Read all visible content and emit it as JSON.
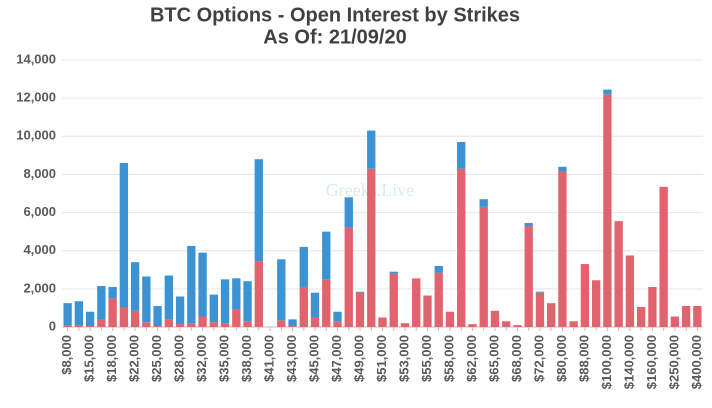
{
  "chart_data": {
    "type": "stacked_bar",
    "title": "BTC Options - Open Interest by Strikes",
    "subtitle": "As Of: 21/09/20",
    "watermark": "Greeks.Live",
    "categories": [
      "$8,000",
      null,
      "$15,000",
      null,
      "$18,000",
      null,
      "$22,000",
      null,
      "$25,000",
      null,
      "$28,000",
      null,
      "$32,000",
      null,
      "$35,000",
      null,
      "$38,000",
      null,
      "$41,000",
      null,
      "$43,000",
      null,
      "$45,000",
      null,
      "$47,000",
      null,
      "$49,000",
      null,
      "$51,000",
      null,
      "$53,000",
      null,
      "$55,000",
      null,
      "$58,000",
      null,
      "$62,000",
      null,
      "$65,000",
      null,
      "$68,000",
      null,
      "$72,000",
      null,
      "$80,000",
      null,
      "$88,000",
      null,
      "$100,000",
      null,
      "$140,000",
      null,
      "$160,000",
      null,
      "$250,000",
      null,
      "$400,000"
    ],
    "series": [
      {
        "color": "#e0636e",
        "values": [
          100,
          100,
          50,
          400,
          1500,
          1000,
          850,
          250,
          50,
          400,
          150,
          200,
          550,
          250,
          200,
          900,
          300,
          3450,
          0,
          350,
          50,
          2100,
          500,
          2500,
          300,
          5200,
          1800,
          8300,
          500,
          2800,
          200,
          2550,
          1650,
          2850,
          800,
          8300,
          150,
          6300,
          850,
          300,
          100,
          5300,
          1800,
          1250,
          8150,
          300,
          3300,
          2450,
          12200,
          5550,
          3750,
          1050,
          2100,
          7350,
          550,
          1100,
          1100
        ]
      },
      {
        "color": "#3b93d4",
        "values": [
          1150,
          1250,
          750,
          1750,
          600,
          7600,
          2550,
          2400,
          1050,
          2300,
          1450,
          4050,
          3350,
          1450,
          2300,
          1650,
          2100,
          5350,
          0,
          3200,
          350,
          2100,
          1300,
          2500,
          500,
          1600,
          50,
          2000,
          0,
          100,
          0,
          0,
          0,
          350,
          0,
          1400,
          0,
          400,
          0,
          0,
          0,
          150,
          50,
          0,
          250,
          0,
          0,
          0,
          250,
          0,
          0,
          0,
          0,
          0,
          0,
          0,
          0
        ]
      }
    ],
    "ylim": [
      0,
      14000
    ],
    "yticks": [
      0,
      {
        "value": 2000,
        "label": "2,000"
      },
      {
        "value": 4000,
        "label": "4,000"
      },
      {
        "value": 6000,
        "label": "6,000"
      },
      {
        "value": 8000,
        "label": "8,000"
      },
      {
        "value": 10000,
        "label": "10,000"
      },
      {
        "value": 12000,
        "label": "12,000"
      },
      {
        "value": 14000,
        "label": "14,000"
      }
    ],
    "grid": true
  }
}
